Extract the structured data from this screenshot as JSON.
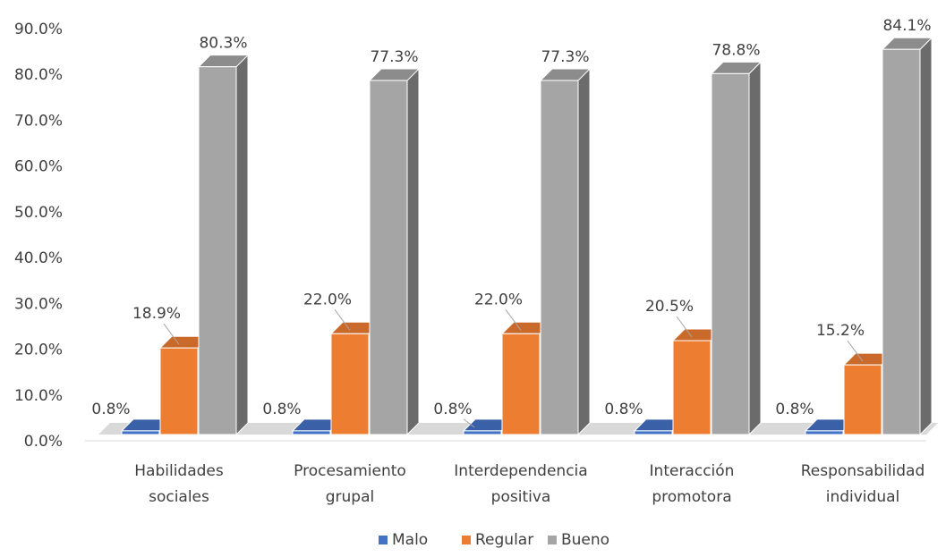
{
  "chart_data": {
    "type": "bar",
    "categories": [
      "Habilidades sociales",
      "Procesamiento grupal",
      "Interdependencia positiva",
      "Interacción promotora",
      "Responsabilidad individual"
    ],
    "category_lines": [
      [
        "Habilidades",
        "sociales"
      ],
      [
        "Procesamiento",
        "grupal"
      ],
      [
        "Interdependencia",
        "positiva"
      ],
      [
        "Interacción",
        "promotora"
      ],
      [
        "Responsabilidad",
        "individual"
      ]
    ],
    "series": [
      {
        "name": "Malo",
        "values": [
          0.8,
          0.8,
          0.8,
          0.8,
          0.8
        ],
        "labels": [
          "0.8%",
          "0.8%",
          "0.8%",
          "0.8%",
          "0.8%"
        ],
        "color": "#4472C4"
      },
      {
        "name": "Regular",
        "values": [
          18.9,
          22.0,
          22.0,
          20.5,
          15.2
        ],
        "labels": [
          "18.9%",
          "22.0%",
          "22.0%",
          "20.5%",
          "15.2%"
        ],
        "color": "#ED7D31"
      },
      {
        "name": "Bueno",
        "values": [
          80.3,
          77.3,
          77.3,
          78.8,
          84.1
        ],
        "labels": [
          "80.3%",
          "77.3%",
          "77.3%",
          "78.8%",
          "84.1%"
        ],
        "color": "#A5A5A5"
      }
    ],
    "y_ticks": [
      "0.0%",
      "10.0%",
      "20.0%",
      "30.0%",
      "40.0%",
      "50.0%",
      "60.0%",
      "70.0%",
      "80.0%",
      "90.0%"
    ],
    "ylim": [
      0,
      90
    ],
    "grid": false,
    "three_d": true,
    "legend_position": "bottom"
  }
}
